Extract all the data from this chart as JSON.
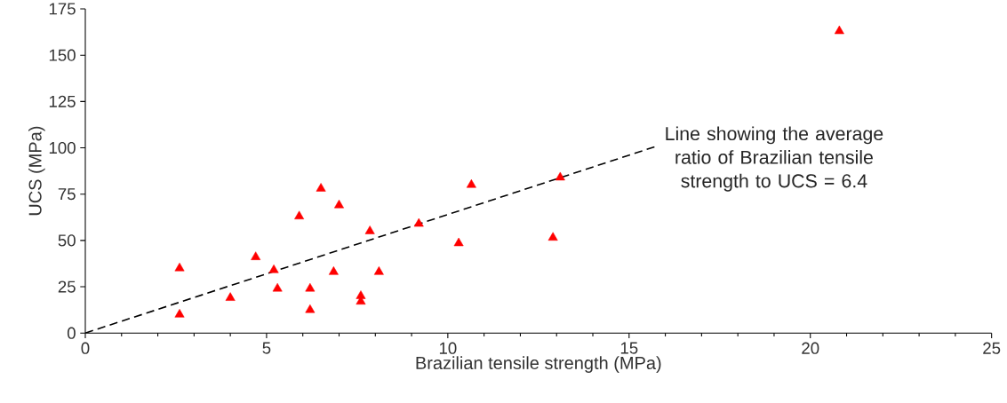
{
  "chart_data": {
    "type": "scatter",
    "xlabel": "Brazilian tensile strength (MPa)",
    "ylabel": "UCS (MPa)",
    "xlim": [
      0,
      25
    ],
    "ylim": [
      0,
      175
    ],
    "xticks": [
      0,
      5,
      10,
      15,
      20,
      25
    ],
    "yticks": [
      0,
      25,
      50,
      75,
      100,
      125,
      150,
      175
    ],
    "grid": false,
    "annotations": [
      "Line showing the average ratio of Brazilian tensile strength to UCS = 6.4"
    ],
    "series": [
      {
        "color": "#ff0000",
        "marker": "triangle",
        "x": [
          2.6,
          2.6,
          4.0,
          4.7,
          5.2,
          5.3,
          5.9,
          6.2,
          6.2,
          6.5,
          7.0,
          6.85,
          7.6,
          7.6,
          7.85,
          8.1,
          9.2,
          10.3,
          10.65,
          12.9,
          13.1,
          20.8
        ],
        "values": [
          35,
          10,
          19,
          41,
          34,
          24,
          63,
          12.5,
          24,
          78,
          69,
          33,
          20,
          17,
          55,
          33,
          59,
          48.5,
          80,
          51.5,
          84,
          163
        ]
      },
      {
        "type": "line",
        "color": "#000000",
        "marker": "none",
        "line_style": "dashed",
        "x": [
          0,
          15.7
        ],
        "values": [
          0,
          100.5
        ]
      }
    ]
  }
}
